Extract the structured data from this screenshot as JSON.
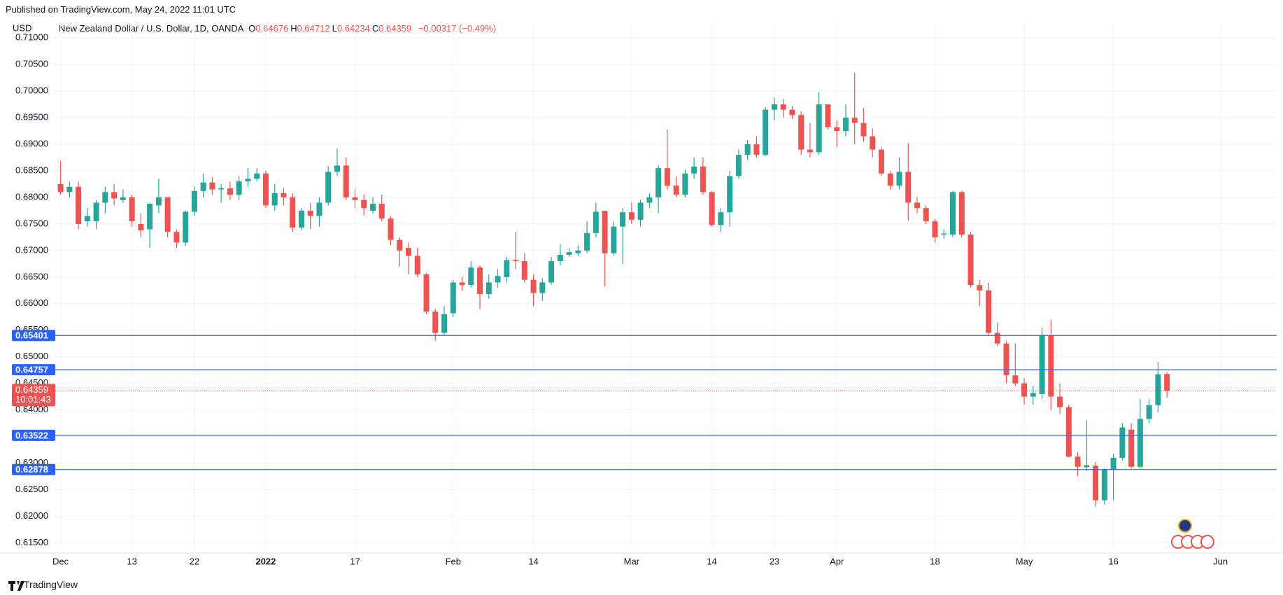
{
  "published": "Published on TradingView.com, May 24, 2022 11:01 UTC",
  "footer": "TradingView",
  "chart_data": {
    "type": "candlestick",
    "currency": "USD",
    "symbol": "New Zealand Dollar / U.S. Dollar, 1D, OANDA",
    "ohlc_legend": [
      {
        "label": "O",
        "value": "0.64676"
      },
      {
        "label": "H",
        "value": "0.64712"
      },
      {
        "label": "L",
        "value": "0.64234"
      },
      {
        "label": "C",
        "value": "0.64359"
      }
    ],
    "change": "−0.00317 (−0.49%)",
    "up_color": "#26a69a",
    "down_color": "#ef5350",
    "open": [
      0.6825,
      0.681,
      0.682,
      0.6755,
      0.6755,
      0.679,
      0.681,
      0.6795,
      0.68,
      0.675,
      0.674,
      0.6785,
      0.68,
      0.6735,
      0.6715,
      0.6773,
      0.6812,
      0.6828,
      0.6815,
      0.6817,
      0.6805,
      0.683,
      0.6835,
      0.6845,
      0.6785,
      0.6808,
      0.68,
      0.6743,
      0.6775,
      0.6765,
      0.679,
      0.6848,
      0.686,
      0.68,
      0.6795,
      0.6775,
      0.6788,
      0.676,
      0.672,
      0.6705,
      0.669,
      0.6655,
      0.6585,
      0.6545,
      0.6582,
      0.664,
      0.6635,
      0.6668,
      0.6618,
      0.664,
      0.665,
      0.6682,
      0.668,
      0.6645,
      0.662,
      0.664,
      0.668,
      0.6692,
      0.6695,
      0.67,
      0.6733,
      0.6775,
      0.6695,
      0.6745,
      0.6772,
      0.6758,
      0.679,
      0.68,
      0.6855,
      0.6822,
      0.6805,
      0.6845,
      0.6858,
      0.681,
      0.6748,
      0.6772,
      0.684,
      0.688,
      0.69,
      0.688,
      0.6965,
      0.6975,
      0.6965,
      0.6955,
      0.689,
      0.6885,
      0.6975,
      0.6932,
      0.6925,
      0.695,
      0.694,
      0.6915,
      0.689,
      0.6845,
      0.6822,
      0.6848,
      0.679,
      0.678,
      0.6755,
      0.673,
      0.673,
      0.681,
      0.673,
      0.6635,
      0.6625,
      0.6545,
      0.6525,
      0.6465,
      0.645,
      0.6425,
      0.643,
      0.654,
      0.6425,
      0.6405,
      0.6312,
      0.6292,
      0.6295,
      0.623,
      0.6288,
      0.631,
      0.6363,
      0.6293,
      0.6383,
      0.6409,
      0.64676
    ],
    "high": [
      0.6868,
      0.683,
      0.683,
      0.678,
      0.6795,
      0.682,
      0.6825,
      0.6815,
      0.6805,
      0.677,
      0.679,
      0.6835,
      0.68,
      0.674,
      0.6775,
      0.682,
      0.6845,
      0.6838,
      0.6825,
      0.683,
      0.684,
      0.6855,
      0.6855,
      0.685,
      0.6825,
      0.6818,
      0.6808,
      0.678,
      0.679,
      0.68,
      0.6858,
      0.6892,
      0.6875,
      0.6815,
      0.6805,
      0.68,
      0.6805,
      0.6765,
      0.6725,
      0.6715,
      0.6705,
      0.6658,
      0.659,
      0.6595,
      0.6645,
      0.665,
      0.668,
      0.6672,
      0.6655,
      0.6665,
      0.6688,
      0.6735,
      0.6695,
      0.6655,
      0.6648,
      0.6688,
      0.6712,
      0.6705,
      0.671,
      0.6755,
      0.679,
      0.6775,
      0.6755,
      0.678,
      0.679,
      0.6795,
      0.6808,
      0.686,
      0.6928,
      0.684,
      0.6852,
      0.6875,
      0.6875,
      0.6812,
      0.678,
      0.685,
      0.689,
      0.6908,
      0.6915,
      0.697,
      0.6988,
      0.6985,
      0.6972,
      0.6962,
      0.694,
      0.6998,
      0.6975,
      0.6945,
      0.6975,
      0.7035,
      0.6968,
      0.693,
      0.6895,
      0.685,
      0.6875,
      0.6902,
      0.68,
      0.6785,
      0.676,
      0.674,
      0.6812,
      0.6812,
      0.6735,
      0.6645,
      0.664,
      0.6565,
      0.653,
      0.6525,
      0.646,
      0.6445,
      0.6555,
      0.657,
      0.645,
      0.641,
      0.632,
      0.638,
      0.6302,
      0.629,
      0.6318,
      0.6375,
      0.6375,
      0.642,
      0.642,
      0.649,
      0.64712
    ],
    "low": [
      0.6805,
      0.68,
      0.674,
      0.6745,
      0.674,
      0.677,
      0.6785,
      0.679,
      0.6745,
      0.6725,
      0.6705,
      0.677,
      0.6725,
      0.6705,
      0.6708,
      0.6765,
      0.68,
      0.6805,
      0.679,
      0.6795,
      0.6795,
      0.682,
      0.683,
      0.678,
      0.6775,
      0.6785,
      0.6735,
      0.6738,
      0.674,
      0.6745,
      0.6785,
      0.684,
      0.6795,
      0.678,
      0.6765,
      0.677,
      0.6755,
      0.671,
      0.667,
      0.6655,
      0.665,
      0.658,
      0.653,
      0.654,
      0.6575,
      0.6625,
      0.663,
      0.659,
      0.661,
      0.663,
      0.664,
      0.6665,
      0.664,
      0.6595,
      0.6605,
      0.6635,
      0.6672,
      0.6688,
      0.669,
      0.6695,
      0.6725,
      0.6632,
      0.669,
      0.6675,
      0.675,
      0.6745,
      0.678,
      0.677,
      0.6815,
      0.68,
      0.68,
      0.6835,
      0.6805,
      0.6745,
      0.6735,
      0.6745,
      0.6835,
      0.687,
      0.6875,
      0.6878,
      0.6945,
      0.695,
      0.6948,
      0.688,
      0.6875,
      0.688,
      0.6928,
      0.6895,
      0.6915,
      0.69,
      0.6905,
      0.6875,
      0.684,
      0.6815,
      0.6815,
      0.6757,
      0.677,
      0.675,
      0.6715,
      0.6722,
      0.6725,
      0.6725,
      0.663,
      0.6595,
      0.654,
      0.652,
      0.645,
      0.6445,
      0.641,
      0.641,
      0.642,
      0.64,
      0.6392,
      0.631,
      0.6275,
      0.6285,
      0.6218,
      0.6222,
      0.623,
      0.6305,
      0.629,
      0.629,
      0.6375,
      0.6395,
      0.64234
    ],
    "close": [
      0.681,
      0.682,
      0.675,
      0.6765,
      0.679,
      0.681,
      0.6798,
      0.68,
      0.6755,
      0.6738,
      0.6788,
      0.68,
      0.6735,
      0.6715,
      0.6773,
      0.6812,
      0.6828,
      0.6815,
      0.6817,
      0.6805,
      0.683,
      0.6835,
      0.6845,
      0.6785,
      0.6808,
      0.68,
      0.6743,
      0.6775,
      0.6765,
      0.679,
      0.6848,
      0.686,
      0.68,
      0.6795,
      0.678,
      0.6788,
      0.676,
      0.672,
      0.67,
      0.669,
      0.6655,
      0.6585,
      0.6545,
      0.658,
      0.664,
      0.6635,
      0.6668,
      0.6618,
      0.664,
      0.6652,
      0.6682,
      0.668,
      0.6645,
      0.662,
      0.664,
      0.668,
      0.6692,
      0.6697,
      0.67,
      0.6733,
      0.6773,
      0.6695,
      0.6745,
      0.6772,
      0.6758,
      0.679,
      0.68,
      0.6855,
      0.6822,
      0.6805,
      0.6845,
      0.6858,
      0.681,
      0.6748,
      0.6772,
      0.684,
      0.688,
      0.69,
      0.688,
      0.6965,
      0.6975,
      0.6965,
      0.6955,
      0.689,
      0.6885,
      0.6975,
      0.6932,
      0.6925,
      0.695,
      0.694,
      0.6915,
      0.689,
      0.6845,
      0.6822,
      0.6848,
      0.679,
      0.678,
      0.6755,
      0.6725,
      0.6732,
      0.681,
      0.673,
      0.6635,
      0.6625,
      0.6545,
      0.6525,
      0.6465,
      0.645,
      0.6425,
      0.6432,
      0.654,
      0.6425,
      0.6405,
      0.6312,
      0.6293,
      0.6296,
      0.623,
      0.6288,
      0.631,
      0.6367,
      0.6293,
      0.6383,
      0.6409,
      0.6467,
      0.64359
    ],
    "xlim": [
      -0.83,
      136.3
    ],
    "xticks": [
      {
        "value": 0,
        "label": "Dec"
      },
      {
        "value": 8,
        "label": "13"
      },
      {
        "value": 15,
        "label": "22"
      },
      {
        "value": 23,
        "label": "2022"
      },
      {
        "value": 33,
        "label": "17"
      },
      {
        "value": 44,
        "label": "Feb"
      },
      {
        "value": 53,
        "label": "14"
      },
      {
        "value": 64,
        "label": "Mar"
      },
      {
        "value": 73,
        "label": "14"
      },
      {
        "value": 80,
        "label": "23"
      },
      {
        "value": 87,
        "label": "Apr"
      },
      {
        "value": 98,
        "label": "18"
      },
      {
        "value": 108,
        "label": "May"
      },
      {
        "value": 118,
        "label": "16"
      },
      {
        "value": 130,
        "label": "Jun"
      }
    ],
    "ylim": [
      0.6136,
      0.7128
    ],
    "yticks": [
      {
        "value": 0.615,
        "label": "0.61500"
      },
      {
        "value": 0.62,
        "label": "0.62000"
      },
      {
        "value": 0.625,
        "label": "0.62500"
      },
      {
        "value": 0.63,
        "label": "0.63000"
      },
      {
        "value": 0.635,
        "label": "0.63500"
      },
      {
        "value": 0.64,
        "label": "0.64000"
      },
      {
        "value": 0.645,
        "label": "0.64500"
      },
      {
        "value": 0.65,
        "label": "0.65000"
      },
      {
        "value": 0.655,
        "label": "0.65500"
      },
      {
        "value": 0.66,
        "label": "0.66000"
      },
      {
        "value": 0.665,
        "label": "0.66500"
      },
      {
        "value": 0.67,
        "label": "0.67000"
      },
      {
        "value": 0.675,
        "label": "0.67500"
      },
      {
        "value": 0.68,
        "label": "0.68000"
      },
      {
        "value": 0.685,
        "label": "0.68500"
      },
      {
        "value": 0.69,
        "label": "0.69000"
      },
      {
        "value": 0.695,
        "label": "0.69500"
      },
      {
        "value": 0.7,
        "label": "0.70000"
      },
      {
        "value": 0.705,
        "label": "0.70500"
      },
      {
        "value": 0.71,
        "label": "0.71000"
      }
    ],
    "grid": true,
    "levels": [
      0.65401,
      0.64757,
      0.63522,
      0.62878
    ],
    "level_color": "#2962ff",
    "last_price": 0.64359,
    "countdown": "10:01:43"
  }
}
